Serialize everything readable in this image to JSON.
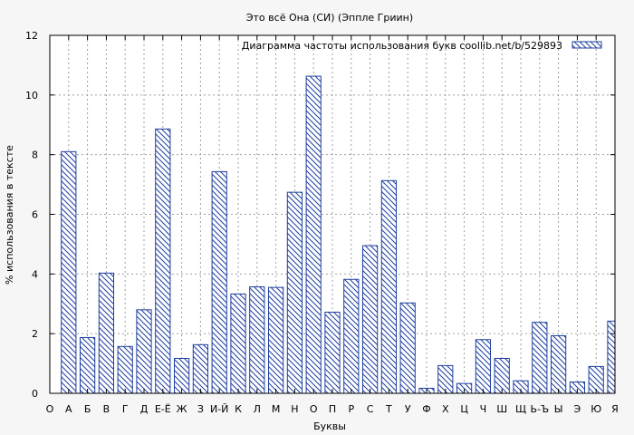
{
  "chart_data": {
    "type": "bar",
    "title": "Это всё Она (СИ) (Эппле Гриин)",
    "xlabel": "Буквы",
    "ylabel": "% использования в тексте",
    "ylim": [
      0,
      12
    ],
    "yticks": [
      0,
      2,
      4,
      6,
      8,
      10,
      12
    ],
    "grid": true,
    "legend_placement": "top-right",
    "categories": [
      "О",
      "А",
      "Б",
      "В",
      "Г",
      "Д",
      "Е-Ё",
      "Ж",
      "З",
      "И-Й",
      "К",
      "Л",
      "М",
      "Н",
      "О",
      "П",
      "Р",
      "С",
      "Т",
      "У",
      "Ф",
      "Х",
      "Ц",
      "Ч",
      "Ш",
      "Щ",
      "Ь-Ъ",
      "Ы",
      "Э",
      "Ю",
      "Я"
    ],
    "series": [
      {
        "name": "Диаграмма частоты использования букв  coollib.net/b/529893",
        "values": [
          null,
          8.1,
          1.87,
          4.03,
          1.57,
          2.8,
          8.86,
          1.17,
          1.63,
          7.43,
          3.33,
          3.57,
          3.55,
          6.74,
          10.63,
          2.72,
          3.82,
          4.95,
          7.13,
          3.03,
          0.17,
          0.93,
          0.33,
          1.8,
          1.17,
          0.42,
          2.38,
          1.93,
          0.38,
          0.9,
          2.42
        ]
      }
    ],
    "colors": {
      "bar_stroke": "#1f3f9f",
      "bar_fill": "#ffffff",
      "grid": "#a0a0a0",
      "plot_bg": "#ffffff",
      "page_bg": "#f6f6f6"
    }
  }
}
